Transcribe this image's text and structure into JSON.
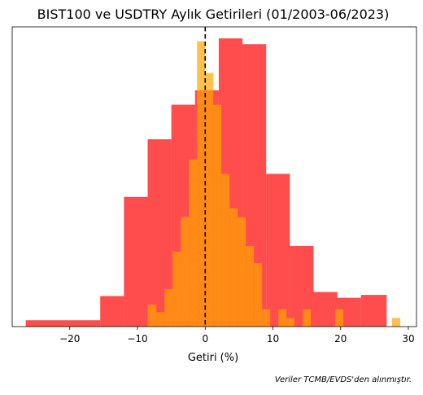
{
  "chart_data": {
    "type": "bar",
    "title": "BIST100 ve USDTRY Aylık Getirileri (01/2003-06/2023)",
    "xlabel": "Getiri (%)",
    "ylabel": "",
    "xlim": [
      -28.5,
      31.2
    ],
    "ylim": [
      0,
      52
    ],
    "xticks": [
      -20,
      -10,
      0,
      10,
      20,
      30
    ],
    "show_yticks": false,
    "grid": false,
    "legend": "none",
    "reference_line": {
      "x": 0,
      "style": "dashed",
      "color": "#000000"
    },
    "series": [
      {
        "color": "#ff0000",
        "opacity": 0.7,
        "bins": [
          {
            "x0": -26.5,
            "x1": -15.5,
            "count": 1.1
          },
          {
            "x0": -15.5,
            "x1": -12.0,
            "count": 5.3
          },
          {
            "x0": -12.0,
            "x1": -8.5,
            "count": 22.5
          },
          {
            "x0": -8.5,
            "x1": -5.0,
            "count": 32.5
          },
          {
            "x0": -5.0,
            "x1": -1.5,
            "count": 38.5
          },
          {
            "x0": -1.5,
            "x1": 2.0,
            "count": 41.0
          },
          {
            "x0": 2.0,
            "x1": 5.5,
            "count": 50.0
          },
          {
            "x0": 5.5,
            "x1": 9.0,
            "count": 49.0
          },
          {
            "x0": 9.0,
            "x1": 12.5,
            "count": 26.5
          },
          {
            "x0": 12.5,
            "x1": 16.0,
            "count": 14.0
          },
          {
            "x0": 16.0,
            "x1": 19.5,
            "count": 6.0
          },
          {
            "x0": 19.5,
            "x1": 23.0,
            "count": 5.0
          },
          {
            "x0": 23.0,
            "x1": 26.8,
            "count": 5.5
          }
        ]
      },
      {
        "color": "#ffa500",
        "opacity": 0.7,
        "bins": [
          {
            "x0": -8.5,
            "x1": -7.2,
            "count": 3.8
          },
          {
            "x0": -7.2,
            "x1": -6.0,
            "count": 2.5
          },
          {
            "x0": -6.0,
            "x1": -4.8,
            "count": 6.5
          },
          {
            "x0": -4.8,
            "x1": -3.6,
            "count": 13.0
          },
          {
            "x0": -3.6,
            "x1": -2.4,
            "count": 19.0
          },
          {
            "x0": -2.4,
            "x1": -1.2,
            "count": 29.0
          },
          {
            "x0": -1.2,
            "x1": 0.0,
            "count": 49.5
          },
          {
            "x0": 0.0,
            "x1": 1.2,
            "count": 44.0
          },
          {
            "x0": 1.2,
            "x1": 2.4,
            "count": 38.5
          },
          {
            "x0": 2.4,
            "x1": 3.6,
            "count": 26.5
          },
          {
            "x0": 3.6,
            "x1": 4.8,
            "count": 20.5
          },
          {
            "x0": 4.8,
            "x1": 6.0,
            "count": 19.0
          },
          {
            "x0": 6.0,
            "x1": 7.2,
            "count": 14.0
          },
          {
            "x0": 7.2,
            "x1": 8.4,
            "count": 11.0
          },
          {
            "x0": 8.4,
            "x1": 9.6,
            "count": 3.0
          },
          {
            "x0": 10.8,
            "x1": 12.0,
            "count": 3.0
          },
          {
            "x0": 12.0,
            "x1": 13.2,
            "count": 1.5
          },
          {
            "x0": 14.4,
            "x1": 15.6,
            "count": 3.0
          },
          {
            "x0": 19.2,
            "x1": 20.4,
            "count": 3.0
          },
          {
            "x0": 27.6,
            "x1": 28.8,
            "count": 1.5
          }
        ]
      }
    ]
  },
  "footer": {
    "source_note": "Veriler TCMB/EVDS'den alınmıştır."
  }
}
